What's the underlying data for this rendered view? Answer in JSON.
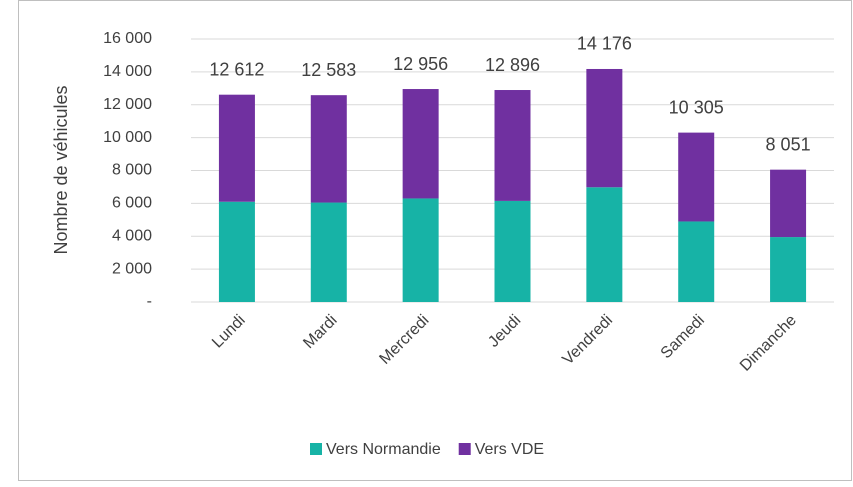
{
  "chart_data": {
    "type": "stacked_bar",
    "y_label": "Nombre de véhicules",
    "categories": [
      "Lundi",
      "Mardi",
      "Mercredi",
      "Jeudi",
      "Vendredi",
      "Samedi",
      "Dimanche"
    ],
    "series": [
      {
        "name": "Vers Normandie",
        "color": "#17b3a6",
        "values": [
          6100,
          6050,
          6300,
          6150,
          6980,
          4900,
          3950
        ]
      },
      {
        "name": "Vers VDE",
        "color": "#7030a0",
        "values": [
          6512,
          6533,
          6656,
          6746,
          7196,
          5405,
          4101
        ]
      }
    ],
    "total_labels": [
      "12 612",
      "12 583",
      "12 956",
      "12 896",
      "14 176",
      "10 305",
      "8 051"
    ],
    "ylim": [
      0,
      16000
    ],
    "yticks": [
      {
        "value": 0,
        "label": "-"
      },
      {
        "value": 2000,
        "label": "2 000"
      },
      {
        "value": 4000,
        "label": "4 000"
      },
      {
        "value": 6000,
        "label": "6 000"
      },
      {
        "value": 8000,
        "label": "8 000"
      },
      {
        "value": 10000,
        "label": "10 000"
      },
      {
        "value": 12000,
        "label": "12 000"
      },
      {
        "value": 14000,
        "label": "14 000"
      },
      {
        "value": 16000,
        "label": "16 000"
      }
    ],
    "grid": true,
    "legend": "bottom"
  }
}
